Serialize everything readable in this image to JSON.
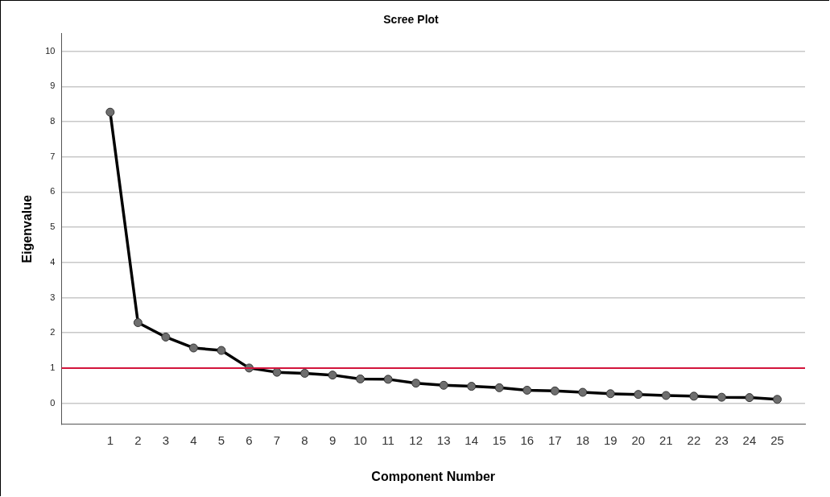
{
  "chart_data": {
    "type": "line",
    "title": "Scree Plot",
    "xlabel": "Component Number",
    "ylabel": "Eigenvalue",
    "x": [
      1,
      2,
      3,
      4,
      5,
      6,
      7,
      8,
      9,
      10,
      11,
      12,
      13,
      14,
      15,
      16,
      17,
      18,
      19,
      20,
      21,
      22,
      23,
      24,
      25
    ],
    "series": [
      {
        "color": "#000000",
        "values": [
          8.27,
          2.29,
          1.88,
          1.57,
          1.5,
          1.0,
          0.88,
          0.85,
          0.8,
          0.69,
          0.68,
          0.57,
          0.51,
          0.48,
          0.44,
          0.37,
          0.35,
          0.31,
          0.27,
          0.25,
          0.22,
          0.2,
          0.17,
          0.16,
          0.11
        ]
      }
    ],
    "xlim": [
      -0.75,
      26
    ],
    "xticks": [
      1,
      2,
      3,
      4,
      5,
      6,
      7,
      8,
      9,
      10,
      11,
      12,
      13,
      14,
      15,
      16,
      17,
      18,
      19,
      20,
      21,
      22,
      23,
      24,
      25
    ],
    "ylim": [
      -0.6,
      10.5
    ],
    "yticks": [
      0,
      1,
      2,
      3,
      4,
      5,
      6,
      7,
      8,
      9,
      10
    ],
    "ref_lines": [
      {
        "axis": "y",
        "value": 1,
        "color": "#d2143c"
      }
    ],
    "grid": "y",
    "marker": "circle",
    "line_style": "solid",
    "legend": false
  }
}
